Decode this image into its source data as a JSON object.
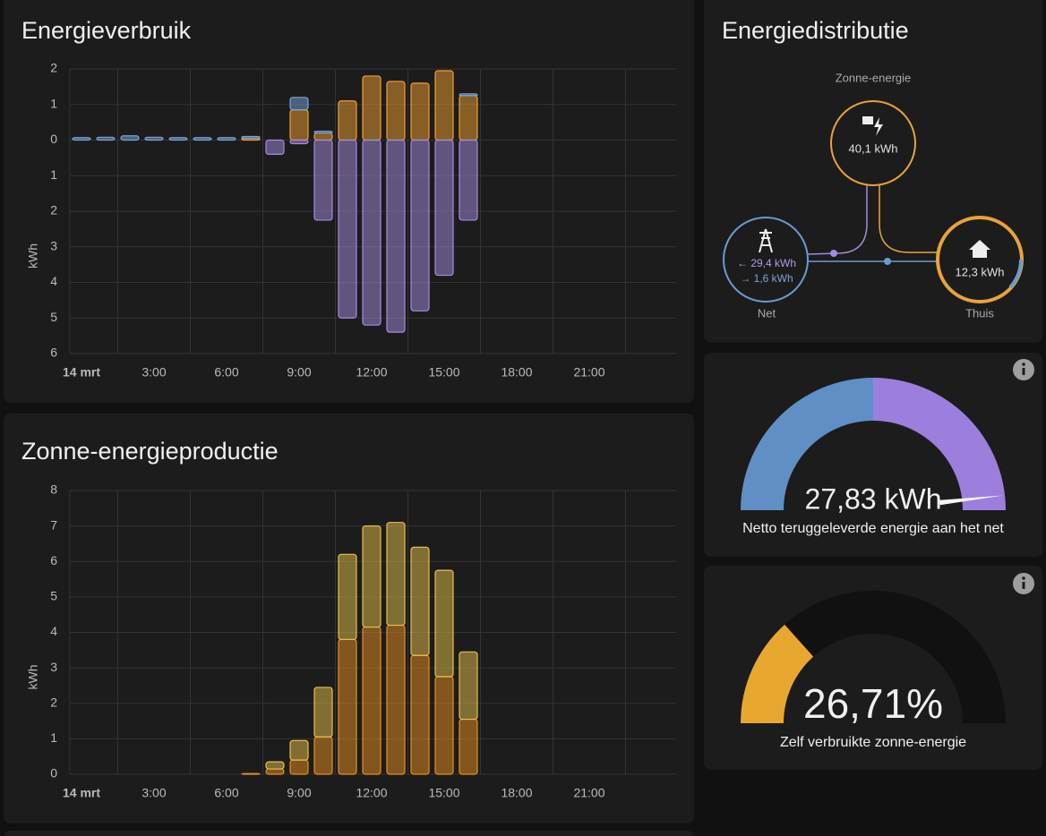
{
  "chart_data": [
    {
      "type": "bar",
      "title": "Energieverbruik",
      "y_label": "kWh",
      "stacked": true,
      "grid": true,
      "categories": [
        "14 mrt",
        null,
        null,
        "3:00",
        null,
        null,
        "6:00",
        null,
        null,
        "9:00",
        null,
        null,
        "12:00",
        null,
        null,
        "15:00",
        null,
        null,
        "18:00",
        null,
        null,
        "21:00",
        null,
        null
      ],
      "ylim": [
        -6,
        2
      ],
      "yticks": [
        2,
        1,
        0,
        {
          "value": -1,
          "label": "1"
        },
        {
          "value": -2,
          "label": "2"
        },
        {
          "value": -3,
          "label": "3"
        },
        {
          "value": -4,
          "label": "4"
        },
        {
          "value": -5,
          "label": "5"
        },
        {
          "value": -6,
          "label": "6"
        }
      ],
      "series": [
        {
          "color": "#f0a030",
          "values": [
            null,
            null,
            null,
            null,
            null,
            null,
            null,
            0.05,
            null,
            0.85,
            0.2,
            1.1,
            1.8,
            1.65,
            1.6,
            1.95,
            1.25,
            null,
            null,
            null,
            null,
            null,
            null,
            null
          ]
        },
        {
          "color": "#7aa5d6",
          "values": [
            0.07,
            0.08,
            0.12,
            0.08,
            0.07,
            0.07,
            0.07,
            0.05,
            null,
            0.35,
            0.05,
            null,
            null,
            null,
            null,
            null,
            0.05,
            null,
            null,
            null,
            null,
            null,
            null,
            null
          ]
        },
        {
          "color": "#a58be0",
          "values": [
            null,
            null,
            null,
            null,
            null,
            null,
            null,
            null,
            -0.4,
            -0.1,
            -2.25,
            -5.0,
            -5.2,
            -5.4,
            -4.8,
            -3.8,
            -2.25,
            null,
            null,
            null,
            null,
            null,
            null,
            null
          ]
        }
      ]
    },
    {
      "type": "bar",
      "title": "Zonne-energieproductie",
      "y_label": "kWh",
      "stacked": true,
      "grid": true,
      "categories": [
        "14 mrt",
        null,
        null,
        "3:00",
        null,
        null,
        "6:00",
        null,
        null,
        "9:00",
        null,
        null,
        "12:00",
        null,
        null,
        "15:00",
        null,
        null,
        "18:00",
        null,
        null,
        "21:00",
        null,
        null
      ],
      "ylim": [
        0,
        8
      ],
      "yticks": [
        0,
        1,
        2,
        3,
        4,
        5,
        6,
        7,
        8
      ],
      "series": [
        {
          "color": "#e8901f",
          "values": [
            null,
            null,
            null,
            null,
            null,
            null,
            null,
            0.02,
            0.15,
            0.4,
            1.05,
            3.8,
            4.15,
            4.2,
            3.35,
            2.75,
            1.55,
            null,
            null,
            null,
            null,
            null,
            null,
            null
          ]
        },
        {
          "color": "#e6c04a",
          "values": [
            null,
            null,
            null,
            null,
            null,
            null,
            null,
            null,
            0.2,
            0.55,
            1.4,
            2.4,
            2.85,
            2.9,
            3.05,
            3.0,
            1.9,
            null,
            null,
            null,
            null,
            null,
            null,
            null
          ]
        }
      ]
    }
  ],
  "distribution": {
    "title": "Energiedistributie",
    "solar": {
      "label": "Zonne-energie",
      "value": "40,1 kWh"
    },
    "grid": {
      "label": "Net",
      "from": "← 29,4 kWh",
      "to": "→ 1,6 kWh"
    },
    "home": {
      "label": "Thuis",
      "value": "12,3 kWh"
    }
  },
  "gauges": [
    {
      "value": 27.83,
      "value_label": "27,83 kWh",
      "range": [
        -30,
        30
      ],
      "label": "Netto teruggeleverde energie aan het net"
    },
    {
      "value": 26.71,
      "value_label": "26,71%",
      "range": [
        0,
        100
      ],
      "label": "Zelf verbruikte zonne-energie",
      "color": "#e8a830"
    }
  ]
}
